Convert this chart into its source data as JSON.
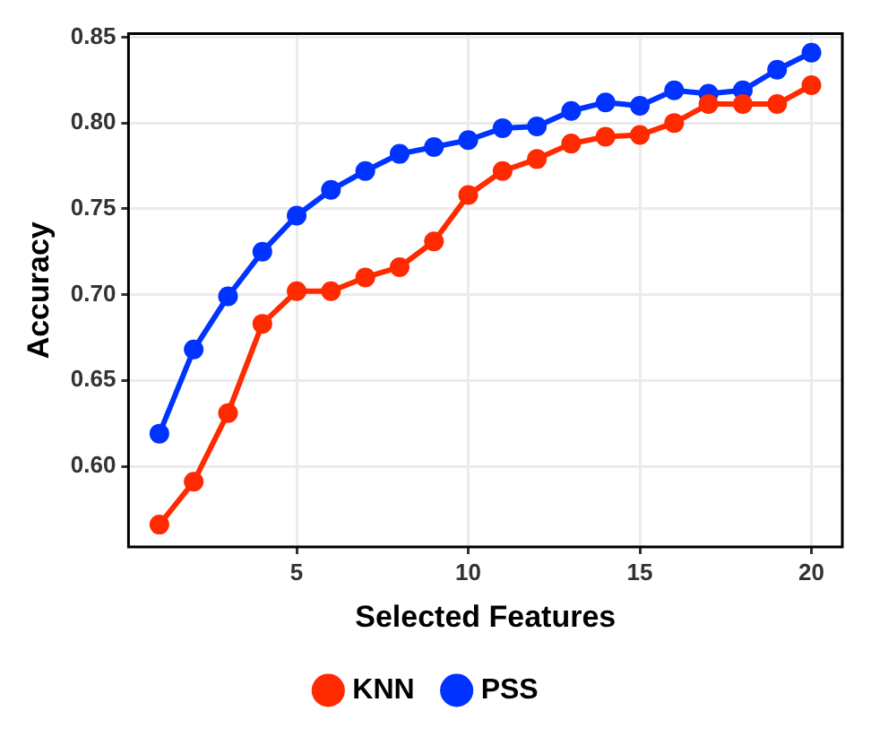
{
  "chart_data": {
    "type": "line",
    "xlabel": "Selected Features",
    "ylabel": "Accuracy",
    "x": [
      1,
      2,
      3,
      4,
      5,
      6,
      7,
      8,
      9,
      10,
      11,
      12,
      13,
      14,
      15,
      16,
      17,
      18,
      19,
      20
    ],
    "xlim": [
      0.1,
      20.9
    ],
    "xticks": [
      5,
      10,
      15,
      20
    ],
    "ylim": [
      0.553,
      0.852
    ],
    "yticks": [
      {
        "value": 0.6,
        "label": "0.60"
      },
      0.65,
      {
        "value": 0.7,
        "label": "0.70"
      },
      0.75,
      {
        "value": 0.8,
        "label": "0.80"
      },
      0.85
    ],
    "series": [
      {
        "name": "KNN",
        "color": "#ff2a00",
        "values": [
          0.566,
          0.591,
          0.631,
          0.683,
          0.702,
          0.702,
          0.71,
          0.716,
          0.731,
          0.758,
          0.772,
          0.779,
          0.788,
          0.792,
          0.793,
          0.8,
          0.811,
          0.811,
          0.811,
          0.822
        ]
      },
      {
        "name": "PSS",
        "color": "#0033ff",
        "values": [
          0.619,
          0.668,
          0.699,
          0.725,
          0.746,
          0.761,
          0.772,
          0.782,
          0.786,
          0.79,
          0.797,
          0.798,
          0.807,
          0.812,
          0.81,
          0.819,
          0.817,
          0.819,
          0.831,
          0.841
        ]
      }
    ],
    "grid": true,
    "legend": "bottom",
    "marker": "circle",
    "line_style": "solid"
  }
}
